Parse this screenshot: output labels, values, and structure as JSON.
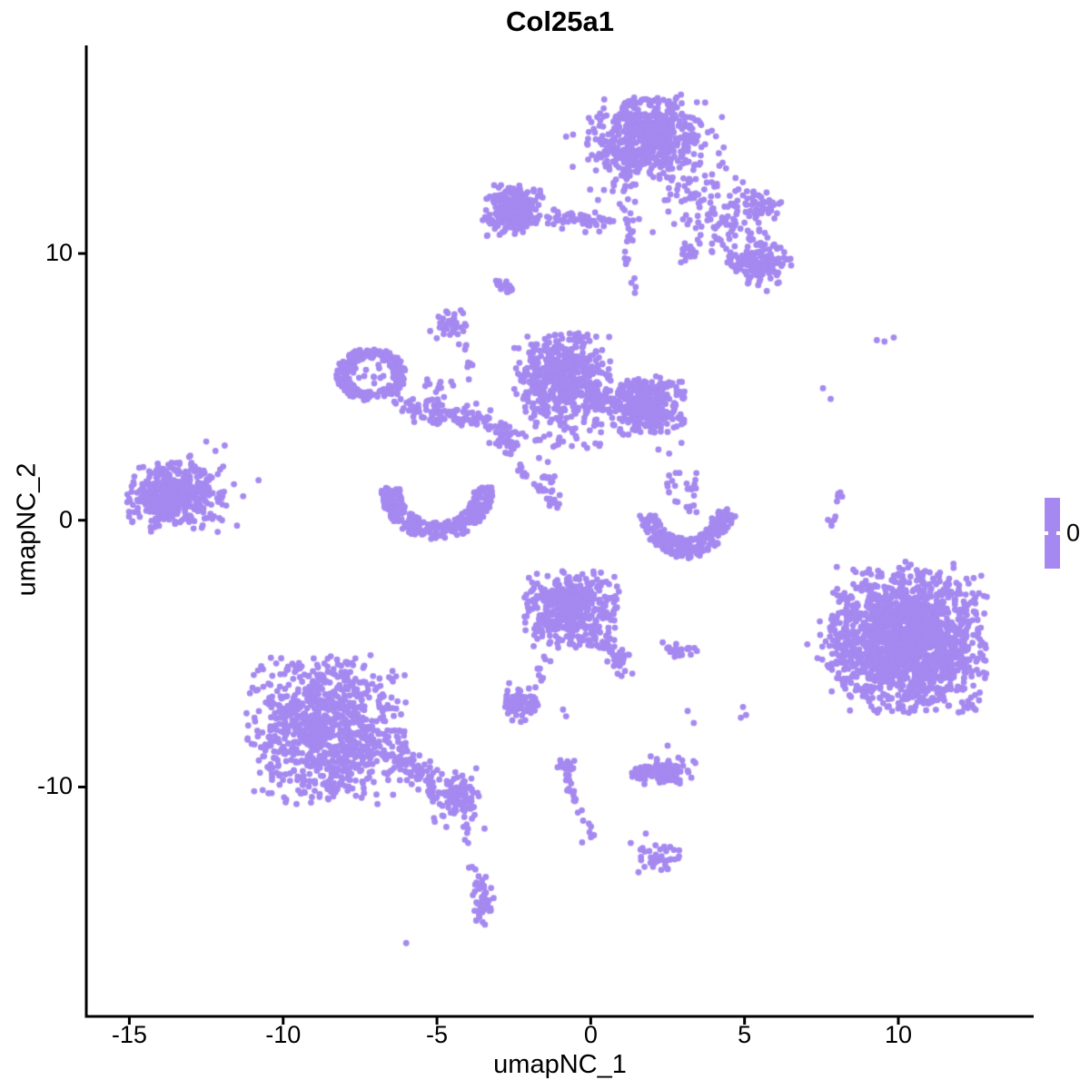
{
  "title": "Col25a1",
  "legend": {
    "label": "0"
  },
  "colors": {
    "point": "#a589f0",
    "legend_bar": "#a589f0",
    "axis": "#000000",
    "background": "#ffffff",
    "text": "#000000"
  },
  "chart_data": {
    "type": "scatter",
    "subtype": "umap-feature-plot",
    "title": "Col25a1",
    "xlabel": "umapNC_1",
    "ylabel": "umapNC_2",
    "x_ticks": [
      -15,
      -10,
      -5,
      0,
      5,
      10
    ],
    "y_ticks": [
      -10,
      0,
      10
    ],
    "xlim": [
      -16.4,
      14.4
    ],
    "ylim": [
      -18.6,
      17.8
    ],
    "grid": false,
    "legend_position": "right",
    "legend_values": [
      "0"
    ],
    "point_radius_px": 3.4,
    "clusters": [
      {
        "t": "gauss",
        "x": 1.75,
        "y": 14.35,
        "sx": 0.85,
        "sy": 0.72,
        "n": 520,
        "clip": 2.2
      },
      {
        "t": "gauss",
        "x": 1.75,
        "y": 14.2,
        "sx": 1.15,
        "sy": 1.0,
        "n": 110,
        "clip": 2.4
      },
      {
        "t": "path",
        "pts": [
          [
            1.05,
            12.9
          ],
          [
            1.1,
            11.8
          ],
          [
            1.35,
            10.6
          ]
        ],
        "j": 0.22,
        "n": 30
      },
      {
        "t": "path",
        "pts": [
          [
            3.2,
            12.8
          ],
          [
            4.1,
            11.8
          ],
          [
            4.9,
            10.8
          ],
          [
            5.4,
            10.2
          ]
        ],
        "j": 0.65,
        "n": 150
      },
      {
        "t": "gauss",
        "x": 3.1,
        "y": 10.05,
        "sx": 0.2,
        "sy": 0.16,
        "n": 20
      },
      {
        "t": "gauss",
        "x": 5.6,
        "y": 11.85,
        "sx": 0.3,
        "sy": 0.24,
        "n": 45
      },
      {
        "t": "gauss",
        "x": 5.55,
        "y": 9.6,
        "sx": 0.42,
        "sy": 0.34,
        "n": 115
      },
      {
        "t": "gauss",
        "x": 4.9,
        "y": 9.7,
        "sx": 0.25,
        "sy": 0.2,
        "n": 22
      },
      {
        "t": "path",
        "pts": [
          [
            1.15,
            10.2
          ],
          [
            1.3,
            9.2
          ],
          [
            1.45,
            8.3
          ]
        ],
        "j": 0.1,
        "n": 9
      },
      {
        "t": "gauss",
        "x": -2.55,
        "y": 11.6,
        "sx": 0.5,
        "sy": 0.5,
        "n": 210,
        "clip": 2.0
      },
      {
        "t": "path",
        "pts": [
          [
            -1.6,
            11.45
          ],
          [
            -0.55,
            11.3
          ],
          [
            0.6,
            11.1
          ]
        ],
        "j": 0.17,
        "n": 55
      },
      {
        "t": "path",
        "pts": [
          [
            -3.05,
            8.95
          ],
          [
            -2.5,
            8.5
          ]
        ],
        "j": 0.1,
        "n": 20
      },
      {
        "t": "gauss",
        "x": -4.6,
        "y": 7.35,
        "sx": 0.27,
        "sy": 0.24,
        "n": 34
      },
      {
        "t": "ring",
        "x": -7.15,
        "y": 5.45,
        "rx": 0.92,
        "ry": 0.82,
        "th": 0.45,
        "n": 250
      },
      {
        "t": "gauss",
        "x": -7.1,
        "y": 5.4,
        "sx": 0.3,
        "sy": 0.3,
        "n": 12
      },
      {
        "t": "path",
        "pts": [
          [
            -4.2,
            6.7
          ],
          [
            -3.95,
            5.9
          ],
          [
            -3.85,
            5.1
          ]
        ],
        "j": 0.09,
        "n": 10
      },
      {
        "t": "path",
        "pts": [
          [
            -6.15,
            4.4
          ],
          [
            -5.2,
            4.05
          ],
          [
            -4.3,
            3.85
          ],
          [
            -3.5,
            3.7
          ],
          [
            -2.95,
            3.5
          ]
        ],
        "j": 0.22,
        "n": 115
      },
      {
        "t": "box",
        "x0": -5.7,
        "y0": 4.3,
        "x1": -4.3,
        "y1": 5.3,
        "n": 15
      },
      {
        "t": "gauss",
        "x": -2.7,
        "y": 3.0,
        "sx": 0.22,
        "sy": 0.2,
        "n": 40
      },
      {
        "t": "path",
        "pts": [
          [
            -2.35,
            1.95
          ],
          [
            -2.0,
            1.62
          ]
        ],
        "j": 0.06,
        "n": 9
      },
      {
        "t": "path",
        "pts": [
          [
            -1.85,
            1.35
          ],
          [
            -1.52,
            1.1
          ]
        ],
        "j": 0.06,
        "n": 8
      },
      {
        "t": "path",
        "pts": [
          [
            -1.45,
            0.82
          ],
          [
            -1.08,
            0.5
          ]
        ],
        "j": 0.06,
        "n": 8
      },
      {
        "t": "gauss",
        "x": -0.95,
        "y": 5.4,
        "sx": 0.78,
        "sy": 0.78,
        "n": 540,
        "clip": 2.1
      },
      {
        "t": "gauss",
        "x": 1.85,
        "y": 4.3,
        "sx": 0.62,
        "sy": 0.56,
        "n": 370,
        "clip": 2.0
      },
      {
        "t": "box",
        "x0": -0.15,
        "y0": 4.1,
        "x1": 1.05,
        "y1": 5.0,
        "n": 65
      },
      {
        "t": "box",
        "x0": -1.8,
        "y0": 2.7,
        "x1": 0.4,
        "y1": 3.9,
        "n": 40
      },
      {
        "t": "path",
        "pts": [
          [
            -1.5,
            2.25
          ],
          [
            -1.32,
            1.4
          ],
          [
            -1.2,
            0.65
          ]
        ],
        "j": 0.11,
        "n": 15
      },
      {
        "t": "arc",
        "x": -5.0,
        "y": 1.1,
        "rx": 1.5,
        "ry": 1.5,
        "a0": 175,
        "a1": 365,
        "th": 0.42,
        "n": 300
      },
      {
        "t": "gauss",
        "x": -13.5,
        "y": 1.0,
        "sx": 0.8,
        "sy": 0.72,
        "n": 300,
        "clip": 2.0
      },
      {
        "t": "gauss",
        "x": -13.8,
        "y": 0.9,
        "sx": 0.5,
        "sy": 0.45,
        "n": 130
      },
      {
        "t": "dots",
        "pts": [
          [
            -12.2,
            2.6
          ],
          [
            -11.9,
            2.8
          ],
          [
            -12.05,
            1.9
          ],
          [
            -11.6,
            1.35
          ],
          [
            -11.85,
            0.55
          ],
          [
            -12.3,
            0.05
          ],
          [
            -11.5,
            -0.2
          ],
          [
            -10.8,
            1.5
          ],
          [
            -12.5,
            2.95
          ],
          [
            -11.3,
            0.9
          ]
        ]
      },
      {
        "t": "arc",
        "x": 3.1,
        "y": 0.75,
        "rx": 1.32,
        "ry": 1.8,
        "a0": 195,
        "a1": 345,
        "th": 0.42,
        "n": 230
      },
      {
        "t": "gauss",
        "x": 4.35,
        "y": 0.15,
        "sx": 0.17,
        "sy": 0.2,
        "n": 14
      },
      {
        "t": "box",
        "x0": 2.45,
        "y0": 0.3,
        "x1": 3.55,
        "y1": 1.9,
        "n": 24
      },
      {
        "t": "dots",
        "pts": [
          [
            2.55,
            2.5
          ],
          [
            2.95,
            2.9
          ],
          [
            2.2,
            2.65
          ]
        ]
      },
      {
        "t": "gauss",
        "x": -0.62,
        "y": -3.35,
        "sx": 0.78,
        "sy": 0.72,
        "n": 430,
        "clip": 2.0
      },
      {
        "t": "path",
        "pts": [
          [
            0.3,
            -4.35
          ],
          [
            0.75,
            -4.95
          ],
          [
            1.18,
            -5.55
          ]
        ],
        "j": 0.18,
        "n": 45
      },
      {
        "t": "path",
        "pts": [
          [
            -1.28,
            -4.9
          ],
          [
            -1.58,
            -5.55
          ],
          [
            -1.85,
            -6.2
          ]
        ],
        "j": 0.09,
        "n": 12
      },
      {
        "t": "gauss",
        "x": -2.3,
        "y": -6.85,
        "sx": 0.32,
        "sy": 0.28,
        "n": 70
      },
      {
        "t": "dots",
        "pts": [
          [
            -2.55,
            -7.5
          ],
          [
            -0.9,
            -7.1
          ],
          [
            -0.8,
            -7.35
          ]
        ]
      },
      {
        "t": "path",
        "pts": [
          [
            2.5,
            -4.75
          ],
          [
            2.9,
            -4.95
          ],
          [
            3.25,
            -4.8
          ]
        ],
        "j": 0.09,
        "n": 26
      },
      {
        "t": "dots",
        "pts": [
          [
            3.45,
            -4.9
          ],
          [
            4.95,
            -7.0
          ],
          [
            5.05,
            -7.3
          ],
          [
            4.88,
            -7.4
          ],
          [
            3.15,
            -7.15
          ],
          [
            3.35,
            -7.6
          ]
        ]
      },
      {
        "t": "gauss",
        "x": 10.35,
        "y": -4.55,
        "sx": 1.22,
        "sy": 1.28,
        "n": 1650,
        "clip": 2.1
      },
      {
        "t": "gauss",
        "x": 8.15,
        "y": -4.85,
        "sx": 0.35,
        "sy": 0.5,
        "n": 55
      },
      {
        "t": "box",
        "x0": 8.5,
        "y0": -2.9,
        "x1": 11.8,
        "y1": -1.55,
        "n": 35
      },
      {
        "t": "path",
        "pts": [
          [
            8.05,
            1.05
          ],
          [
            7.95,
            0.35
          ],
          [
            7.85,
            -0.25
          ]
        ],
        "j": 0.07,
        "n": 11
      },
      {
        "t": "dots",
        "pts": [
          [
            7.55,
            4.95
          ],
          [
            7.8,
            4.55
          ],
          [
            8.0,
            -1.75
          ],
          [
            9.3,
            6.75
          ],
          [
            9.55,
            6.7
          ],
          [
            9.85,
            6.85
          ]
        ]
      },
      {
        "t": "gauss",
        "x": -8.6,
        "y": -7.85,
        "sx": 1.3,
        "sy": 1.4,
        "n": 900,
        "clip": 2.0
      },
      {
        "t": "path",
        "pts": [
          [
            -6.5,
            -8.6
          ],
          [
            -5.8,
            -9.3
          ],
          [
            -5.1,
            -9.9
          ]
        ],
        "j": 0.3,
        "n": 75
      },
      {
        "t": "gauss",
        "x": -4.3,
        "y": -10.4,
        "sx": 0.45,
        "sy": 0.38,
        "n": 130
      },
      {
        "t": "path",
        "pts": [
          [
            -4.1,
            -11.3
          ],
          [
            -3.95,
            -12.3
          ],
          [
            -3.8,
            -13.2
          ]
        ],
        "j": 0.07,
        "n": 9
      },
      {
        "t": "path",
        "pts": [
          [
            -3.6,
            -13.6
          ],
          [
            -3.5,
            -14.4
          ],
          [
            -3.42,
            -15.1
          ]
        ],
        "j": 0.15,
        "n": 48
      },
      {
        "t": "dots",
        "pts": [
          [
            -6.0,
            -15.85
          ]
        ]
      },
      {
        "t": "path",
        "pts": [
          [
            -0.95,
            -9.0
          ],
          [
            -0.72,
            -9.9
          ],
          [
            -0.42,
            -10.8
          ],
          [
            -0.08,
            -11.6
          ],
          [
            -0.05,
            -11.95
          ],
          [
            -0.5,
            -12.1
          ]
        ],
        "j": 0.08,
        "n": 30
      },
      {
        "t": "gauss",
        "x": -0.8,
        "y": -9.2,
        "sx": 0.18,
        "sy": 0.14,
        "n": 10
      },
      {
        "t": "gauss",
        "x": 2.3,
        "y": -9.45,
        "sx": 0.55,
        "sy": 0.24,
        "n": 100,
        "clip": 1.9
      },
      {
        "t": "dots",
        "pts": [
          [
            1.95,
            -8.85
          ],
          [
            2.85,
            -8.9
          ],
          [
            3.4,
            -9.1
          ],
          [
            2.15,
            -8.95
          ]
        ]
      },
      {
        "t": "gauss",
        "x": 2.25,
        "y": -12.65,
        "sx": 0.34,
        "sy": 0.3,
        "n": 42
      },
      {
        "t": "dots",
        "pts": [
          [
            1.3,
            -12.1
          ],
          [
            1.62,
            -12.35
          ],
          [
            2.5,
            -8.45
          ]
        ]
      }
    ]
  }
}
